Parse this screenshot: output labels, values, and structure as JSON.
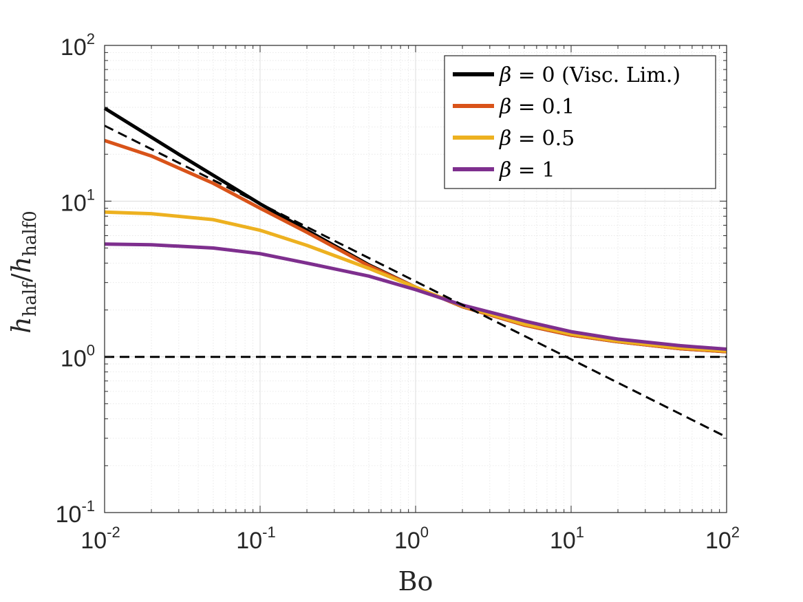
{
  "chart_data": {
    "type": "line",
    "x_scale": "log",
    "y_scale": "log",
    "xlim": [
      0.01,
      100
    ],
    "ylim": [
      0.1,
      100
    ],
    "xlabel": "Bo",
    "ylabel_main": "h",
    "ylabel_sub_num": "half",
    "ylabel_sep": "/",
    "ylabel_sub_den": "half0",
    "grid": true,
    "minor_grid": true,
    "legend_position": "top-right",
    "x_ticks": [
      {
        "value": 0.01,
        "base": "10",
        "exp": "-2"
      },
      {
        "value": 0.1,
        "base": "10",
        "exp": "-1"
      },
      {
        "value": 1,
        "base": "10",
        "exp": "0"
      },
      {
        "value": 10,
        "base": "10",
        "exp": "1"
      },
      {
        "value": 100,
        "base": "10",
        "exp": "2"
      }
    ],
    "y_ticks": [
      {
        "value": 0.1,
        "base": "10",
        "exp": "-1"
      },
      {
        "value": 1,
        "base": "10",
        "exp": "0"
      },
      {
        "value": 10,
        "base": "10",
        "exp": "1"
      },
      {
        "value": 100,
        "base": "10",
        "exp": "2"
      }
    ],
    "series": [
      {
        "name": "beta-0",
        "label_symbol": "β",
        "label_rest": " = 0 (Visc. Lim.)",
        "color": "#000000",
        "style": "solid",
        "points": [
          [
            0.01,
            39.5
          ],
          [
            0.03,
            20.0
          ],
          [
            0.1,
            9.6
          ],
          [
            0.2,
            6.5
          ],
          [
            0.5,
            3.9
          ],
          [
            1,
            2.8
          ],
          [
            2,
            2.1
          ],
          [
            5,
            1.6
          ],
          [
            10,
            1.38
          ],
          [
            20,
            1.25
          ],
          [
            50,
            1.13
          ],
          [
            100,
            1.08
          ]
        ]
      },
      {
        "name": "beta-0.1",
        "label_symbol": "β",
        "label_rest": " = 0.1",
        "color": "#D95319",
        "style": "solid",
        "points": [
          [
            0.01,
            24.5
          ],
          [
            0.02,
            19.5
          ],
          [
            0.05,
            13.0
          ],
          [
            0.1,
            9.0
          ],
          [
            0.2,
            6.3
          ],
          [
            0.5,
            3.85
          ],
          [
            1,
            2.8
          ],
          [
            2,
            2.1
          ],
          [
            5,
            1.6
          ],
          [
            10,
            1.38
          ],
          [
            20,
            1.25
          ],
          [
            50,
            1.13
          ],
          [
            100,
            1.08
          ]
        ]
      },
      {
        "name": "beta-0.5",
        "label_symbol": "β",
        "label_rest": " = 0.5",
        "color": "#EDB120",
        "style": "solid",
        "points": [
          [
            0.01,
            8.5
          ],
          [
            0.02,
            8.3
          ],
          [
            0.05,
            7.6
          ],
          [
            0.1,
            6.5
          ],
          [
            0.2,
            5.2
          ],
          [
            0.5,
            3.7
          ],
          [
            1,
            2.8
          ],
          [
            2,
            2.12
          ],
          [
            5,
            1.62
          ],
          [
            10,
            1.4
          ],
          [
            20,
            1.26
          ],
          [
            50,
            1.14
          ],
          [
            100,
            1.09
          ]
        ]
      },
      {
        "name": "beta-1",
        "label_symbol": "β",
        "label_rest": " = 1",
        "color": "#7E2F8E",
        "style": "solid",
        "points": [
          [
            0.01,
            5.3
          ],
          [
            0.02,
            5.25
          ],
          [
            0.05,
            5.0
          ],
          [
            0.1,
            4.6
          ],
          [
            0.2,
            4.0
          ],
          [
            0.5,
            3.3
          ],
          [
            1,
            2.7
          ],
          [
            2,
            2.15
          ],
          [
            5,
            1.7
          ],
          [
            10,
            1.45
          ],
          [
            20,
            1.3
          ],
          [
            50,
            1.18
          ],
          [
            100,
            1.12
          ]
        ]
      },
      {
        "name": "asymptote-power-law",
        "color": "#000000",
        "style": "dashed",
        "in_legend": false,
        "points": [
          [
            0.01,
            30.5
          ],
          [
            100,
            0.305
          ]
        ]
      },
      {
        "name": "asymptote-unity",
        "color": "#000000",
        "style": "dashed",
        "in_legend": false,
        "points": [
          [
            0.01,
            1.0
          ],
          [
            100,
            1.0
          ]
        ]
      }
    ]
  }
}
